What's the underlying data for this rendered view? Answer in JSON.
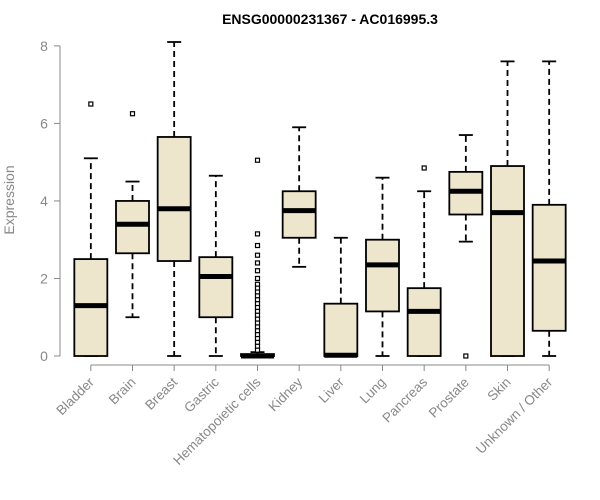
{
  "chart_data": {
    "type": "boxplot",
    "title": "ENSG00000231367 - AC016995.3",
    "xlabel": "",
    "ylabel": "Expression",
    "ylim": [
      0,
      8.1
    ],
    "yticks": [
      0,
      2,
      4,
      6,
      8
    ],
    "colors": {
      "box_fill": "#EDE5CC",
      "stroke": "#000000",
      "axis": "#888888"
    },
    "categories": [
      "Bladder",
      "Brain",
      "Breast",
      "Gastric",
      "Hematopoietic cells",
      "Kidney",
      "Liver",
      "Lung",
      "Pancreas",
      "Prostate",
      "Skin",
      "Unknown / Other"
    ],
    "boxes": [
      {
        "name": "Bladder",
        "min": 0,
        "q1": 0,
        "median": 1.3,
        "q3": 2.5,
        "max": 5.1,
        "outliers": [
          6.5
        ]
      },
      {
        "name": "Brain",
        "min": 1.0,
        "q1": 2.65,
        "median": 3.4,
        "q3": 4.0,
        "max": 4.5,
        "outliers": [
          6.25
        ]
      },
      {
        "name": "Breast",
        "min": 0,
        "q1": 2.45,
        "median": 3.8,
        "q3": 5.65,
        "max": 8.1,
        "outliers": []
      },
      {
        "name": "Gastric",
        "min": 0,
        "q1": 1.0,
        "median": 2.05,
        "q3": 2.55,
        "max": 4.65,
        "outliers": []
      },
      {
        "name": "Hematopoietic cells",
        "min": 0,
        "q1": 0,
        "median": 0,
        "q3": 0.05,
        "max": 0.1,
        "outliers": [
          5.05,
          3.15,
          2.85,
          2.6,
          2.4,
          2.2,
          2.0,
          1.85,
          1.75,
          1.65,
          1.55,
          1.45,
          1.35,
          1.25,
          1.15,
          1.05,
          0.95,
          0.85,
          0.75,
          0.65,
          0.55,
          0.45,
          0.35,
          0.25,
          0.15
        ]
      },
      {
        "name": "Kidney",
        "min": 2.3,
        "q1": 3.05,
        "median": 3.75,
        "q3": 4.25,
        "max": 5.9,
        "outliers": []
      },
      {
        "name": "Liver",
        "min": 0,
        "q1": 0,
        "median": 0.02,
        "q3": 1.35,
        "max": 3.05,
        "outliers": []
      },
      {
        "name": "Lung",
        "min": 0,
        "q1": 1.15,
        "median": 2.35,
        "q3": 3.0,
        "max": 4.6,
        "outliers": []
      },
      {
        "name": "Pancreas",
        "min": 0,
        "q1": 0,
        "median": 1.15,
        "q3": 1.75,
        "max": 4.25,
        "outliers": [
          4.85
        ]
      },
      {
        "name": "Prostate",
        "min": 2.95,
        "q1": 3.65,
        "median": 4.25,
        "q3": 4.75,
        "max": 5.7,
        "outliers": [
          0
        ]
      },
      {
        "name": "Skin",
        "min": 0,
        "q1": 0,
        "median": 3.7,
        "q3": 4.9,
        "max": 7.6,
        "outliers": []
      },
      {
        "name": "Unknown / Other",
        "min": 0,
        "q1": 0.65,
        "median": 2.45,
        "q3": 3.9,
        "max": 7.6,
        "outliers": []
      }
    ]
  }
}
